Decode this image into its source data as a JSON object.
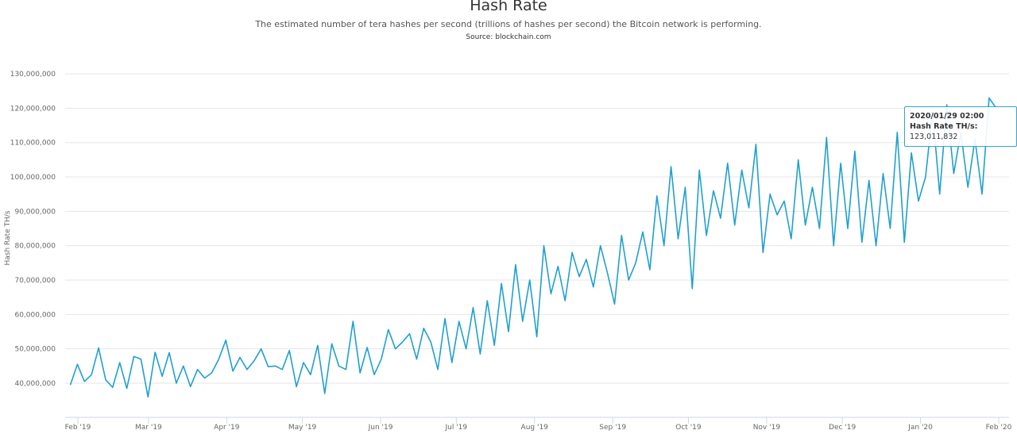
{
  "header": {
    "title": "Hash Rate",
    "subtitle": "The estimated number of tera hashes per second (trillions of hashes per second) the Bitcoin network is performing.",
    "source": "Source: blockchain.com"
  },
  "tooltip": {
    "date": "2020/01/29 02:00",
    "label": "Hash Rate TH/s:",
    "value": "123,011,832"
  },
  "chart_data": {
    "type": "line",
    "title": "Hash Rate",
    "ylabel": "Hash Rate TH/s",
    "xlabel": "",
    "ylim": [
      30000000,
      130000000
    ],
    "x_start": "2019-01-29",
    "x_end": "2020-01-31",
    "yticks": [
      "40,000,000",
      "50,000,000",
      "60,000,000",
      "70,000,000",
      "80,000,000",
      "90,000,000",
      "100,000,000",
      "110,000,000",
      "120,000,000",
      "130,000,000"
    ],
    "ytick_values": [
      40000000,
      50000000,
      60000000,
      70000000,
      80000000,
      90000000,
      100000000,
      110000000,
      120000000,
      130000000
    ],
    "xticks": [
      "Feb '19",
      "Mar '19",
      "Apr '19",
      "May '19",
      "Jun '19",
      "Jul '19",
      "Aug '19",
      "Sep '19",
      "Oct '19",
      "Nov '19",
      "Dec '19",
      "Jan '20",
      "Feb '20"
    ],
    "xtick_dates": [
      "2019-02-01",
      "2019-03-01",
      "2019-04-01",
      "2019-05-01",
      "2019-06-01",
      "2019-07-01",
      "2019-08-01",
      "2019-09-01",
      "2019-10-01",
      "2019-11-01",
      "2019-12-01",
      "2020-01-01",
      "2020-02-01"
    ],
    "series": [
      {
        "name": "Hash Rate TH/s",
        "color": "#1fa0d1",
        "unit": "million TH/s",
        "values": [
          39.5,
          45.5,
          40.5,
          42.5,
          50.3,
          41,
          38.8,
          46,
          38.5,
          47.8,
          47,
          36,
          49,
          42,
          48.9,
          40,
          45,
          39,
          44,
          41.5,
          43,
          47,
          52.5,
          43.5,
          47.5,
          44,
          46.5,
          50,
          44.8,
          45,
          44,
          49.5,
          39,
          46,
          42.5,
          51,
          37,
          51.5,
          45,
          44,
          58,
          43,
          50.4,
          42.5,
          47,
          55.6,
          50,
          52,
          54.4,
          47,
          56,
          52,
          44,
          58.8,
          46,
          58,
          50,
          62,
          48.5,
          64,
          51,
          69,
          55,
          74.5,
          58,
          70,
          53.5,
          80,
          66,
          74,
          64,
          78,
          71,
          76,
          68,
          80,
          72,
          63,
          83,
          70,
          75,
          84,
          73,
          94.5,
          80,
          103,
          82,
          97,
          67.5,
          102,
          83,
          96,
          88,
          104,
          86,
          102,
          91,
          109.5,
          78,
          95,
          89,
          93,
          82,
          105,
          86,
          97,
          85,
          111.5,
          80,
          104,
          85,
          107.5,
          81,
          99,
          80,
          101,
          85,
          113,
          81,
          107,
          93,
          100,
          119,
          95,
          121,
          101,
          113,
          97,
          111,
          95,
          123,
          120
        ]
      }
    ]
  }
}
